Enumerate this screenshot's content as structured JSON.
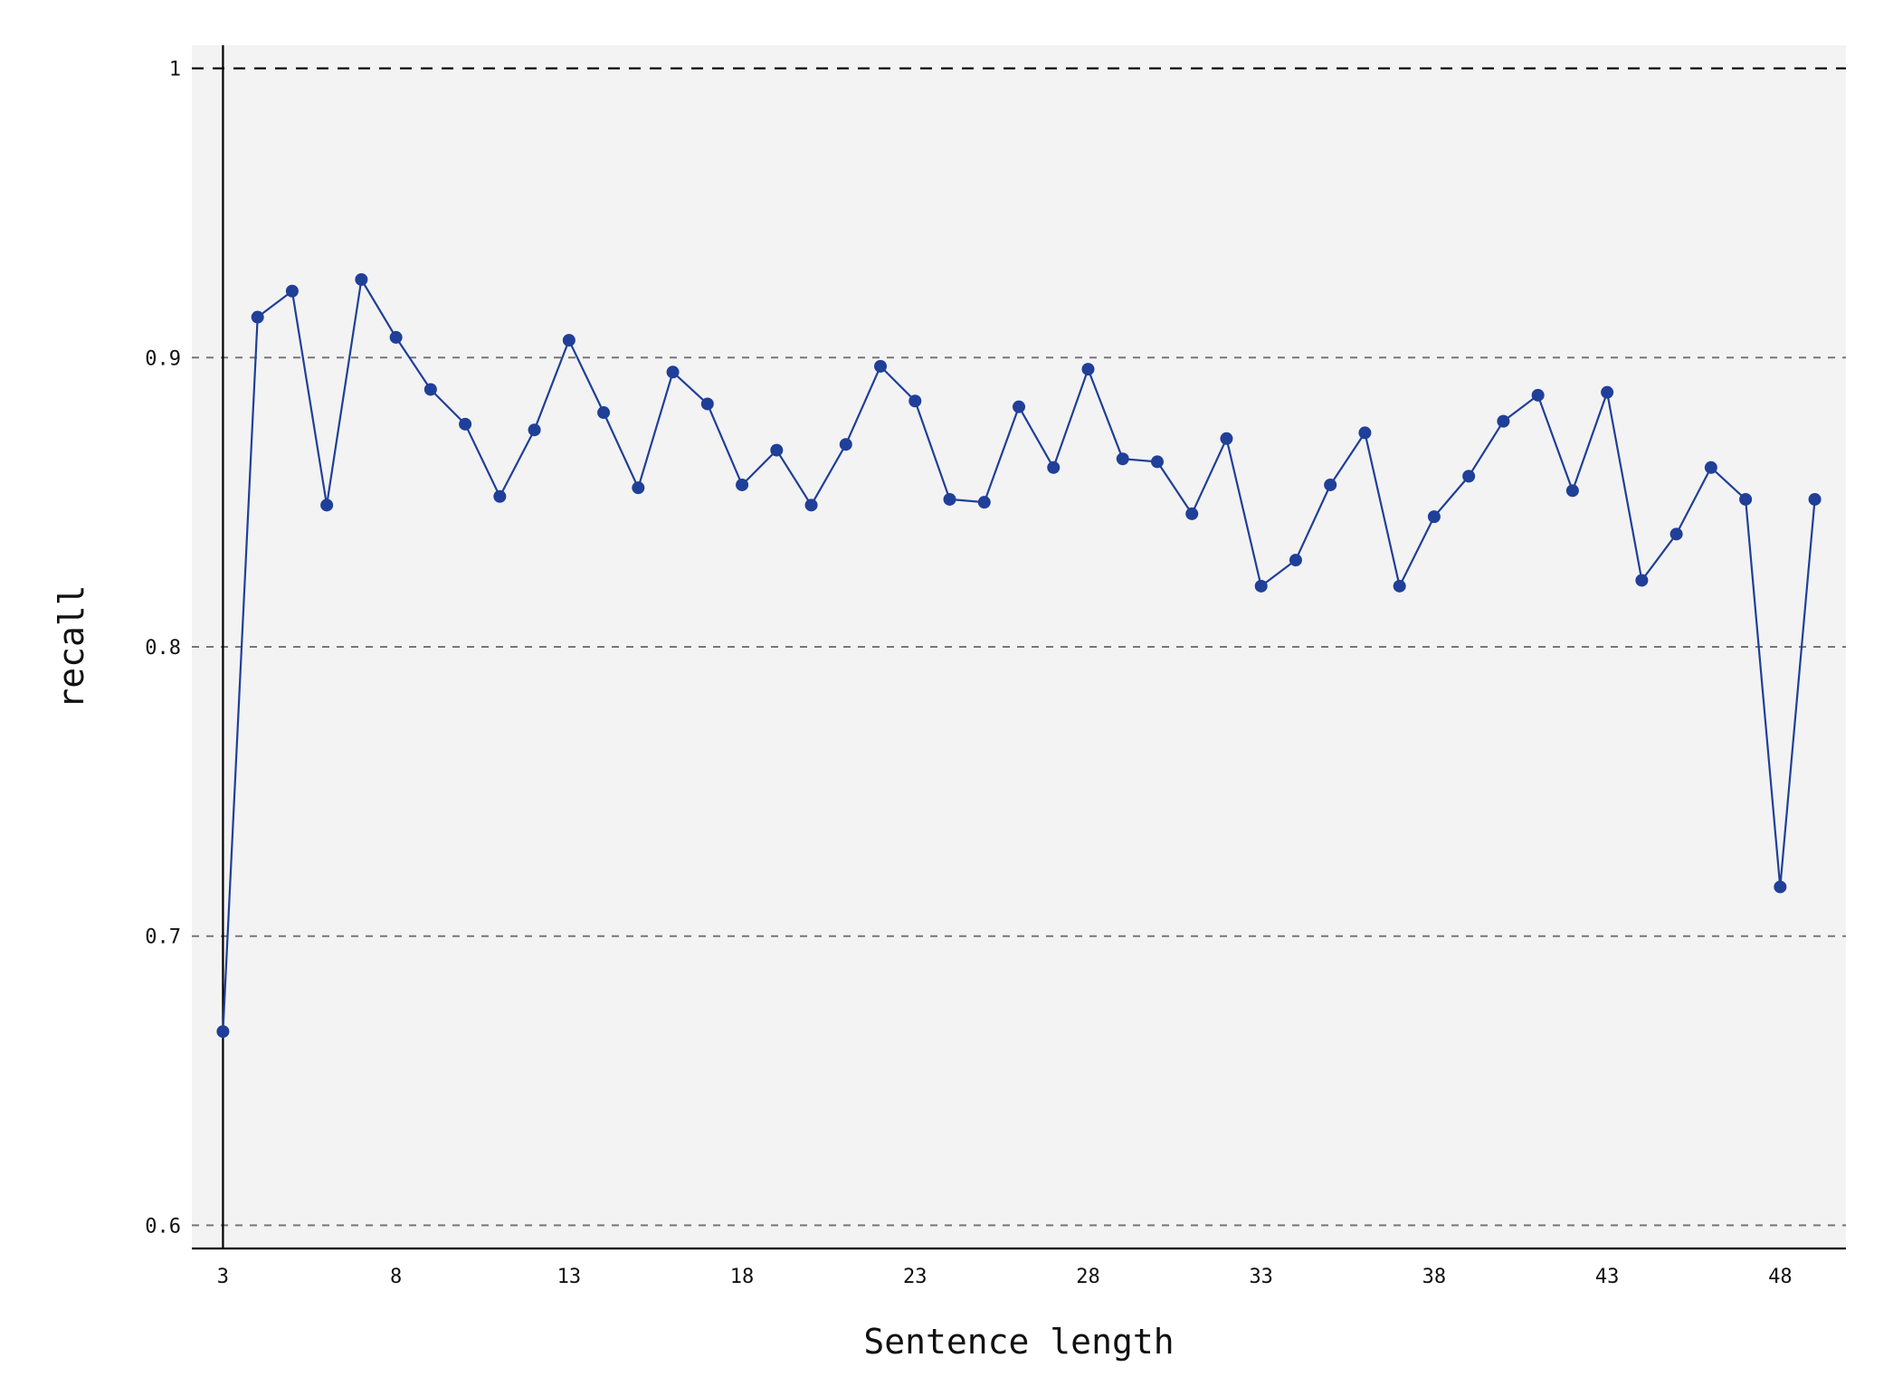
{
  "chart_data": {
    "type": "line",
    "title": "",
    "xlabel": "Sentence length",
    "ylabel": "recall",
    "xlim": [
      2.1,
      49.9
    ],
    "ylim": [
      0.592,
      1.008
    ],
    "xticks": [
      3,
      8,
      13,
      18,
      23,
      28,
      33,
      38,
      43,
      48
    ],
    "xtick_labels": [
      "3",
      "8",
      "13",
      "18",
      "23",
      "28",
      "33",
      "38",
      "43",
      "48"
    ],
    "yticks": [
      0.6,
      0.7,
      0.8,
      0.9,
      1
    ],
    "ytick_labels": [
      "0.6",
      "0.7",
      "0.8",
      "0.9",
      "1"
    ],
    "grid": "horizontal dashed",
    "plot_background": "#f3f3f3",
    "series_color": "#1f3f99",
    "x": [
      3,
      4,
      5,
      6,
      7,
      8,
      9,
      10,
      11,
      12,
      13,
      14,
      15,
      16,
      17,
      18,
      19,
      20,
      21,
      22,
      23,
      24,
      25,
      26,
      27,
      28,
      29,
      30,
      31,
      32,
      33,
      34,
      35,
      36,
      37,
      38,
      39,
      40,
      41,
      42,
      43,
      44,
      45,
      46,
      47,
      48,
      49
    ],
    "y": [
      0.667,
      0.914,
      0.923,
      0.849,
      0.927,
      0.907,
      0.889,
      0.877,
      0.852,
      0.875,
      0.906,
      0.881,
      0.855,
      0.895,
      0.884,
      0.856,
      0.868,
      0.849,
      0.87,
      0.897,
      0.885,
      0.851,
      0.85,
      0.883,
      0.862,
      0.896,
      0.865,
      0.864,
      0.846,
      0.872,
      0.821,
      0.83,
      0.856,
      0.874,
      0.821,
      0.845,
      0.859,
      0.878,
      0.887,
      0.854,
      0.888,
      0.823,
      0.839,
      0.862,
      0.851,
      0.717,
      0.851
    ]
  }
}
